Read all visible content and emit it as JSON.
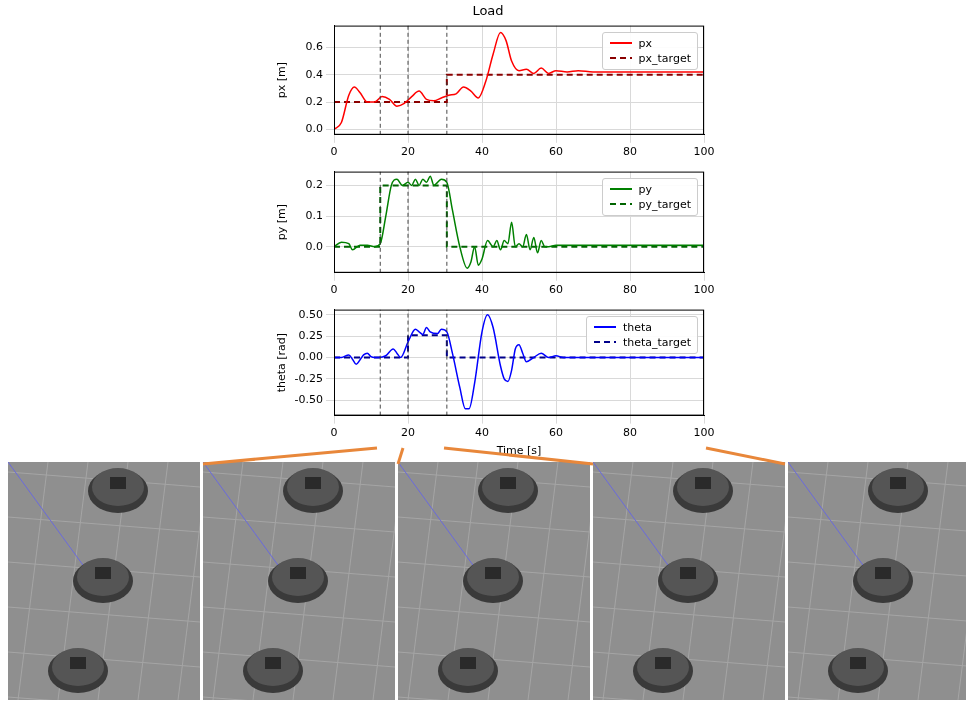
{
  "chart_data": [
    {
      "type": "line",
      "title": "Load",
      "y_label": "px [m]",
      "xlim": [
        0,
        100
      ],
      "xticks": [
        0,
        20,
        40,
        60,
        80,
        100
      ],
      "ylim": [
        -0.04,
        0.76
      ],
      "yticks": [
        {
          "value": 0,
          "label": "0.0"
        },
        0.2,
        0.4,
        0.6
      ],
      "grid": true,
      "legend": "upper right",
      "vlines": [
        12.5,
        20,
        30.5
      ],
      "series": [
        {
          "name": "px",
          "color": "#ff0000",
          "line_style": "solid",
          "x": [
            0,
            2,
            4,
            5.5,
            7,
            9,
            11,
            13,
            15,
            17,
            19,
            21,
            23,
            25,
            27,
            29,
            31,
            33,
            35,
            37,
            39,
            41,
            43,
            45,
            46.5,
            48,
            50,
            52,
            54,
            56,
            58,
            60,
            63,
            66,
            70,
            80,
            90,
            100
          ],
          "values": [
            0,
            0.05,
            0.25,
            0.31,
            0.27,
            0.2,
            0.2,
            0.24,
            0.22,
            0.17,
            0.19,
            0.24,
            0.28,
            0.22,
            0.21,
            0.23,
            0.25,
            0.26,
            0.31,
            0.28,
            0.23,
            0.35,
            0.55,
            0.71,
            0.65,
            0.5,
            0.43,
            0.44,
            0.41,
            0.45,
            0.41,
            0.43,
            0.42,
            0.43,
            0.42,
            0.42,
            0.42,
            0.42
          ]
        },
        {
          "name": "px_target",
          "color": "#8b0000",
          "line_style": "dashed",
          "x": [
            0,
            30.5,
            30.5,
            100
          ],
          "values": [
            0.2,
            0.2,
            0.4,
            0.4
          ]
        }
      ]
    },
    {
      "type": "line",
      "y_label": "py [m]",
      "xlim": [
        0,
        100
      ],
      "xticks": [
        0,
        20,
        40,
        60,
        80,
        100
      ],
      "ylim": [
        -0.085,
        0.245
      ],
      "yticks": [
        {
          "value": 0,
          "label": "0.0"
        },
        0.1,
        0.2
      ],
      "grid": true,
      "legend": "upper right",
      "vlines": [
        12.5,
        20,
        30.5
      ],
      "series": [
        {
          "name": "py",
          "color": "#008000",
          "line_style": "solid",
          "x": [
            0,
            2,
            4,
            5,
            7,
            9,
            11,
            12.5,
            14,
            15.5,
            17,
            18.5,
            20,
            21,
            22,
            23,
            24,
            25,
            26,
            27,
            28,
            29,
            30.5,
            32,
            34,
            36,
            37,
            38,
            39,
            40,
            41.5,
            43,
            44,
            45,
            46,
            47,
            48,
            49,
            50,
            51,
            52,
            53,
            54,
            55,
            56,
            57,
            58,
            60,
            70,
            80,
            100
          ],
          "values": [
            0,
            0.015,
            0.01,
            -0.01,
            0.005,
            0.005,
            0,
            0.01,
            0.1,
            0.2,
            0.22,
            0.2,
            0.21,
            0.2,
            0.22,
            0.2,
            0.22,
            0.21,
            0.23,
            0.2,
            0.21,
            0.22,
            0.21,
            0.12,
            0,
            -0.07,
            -0.05,
            0,
            -0.06,
            -0.04,
            0.02,
            0,
            0.02,
            -0.01,
            0.02,
            0.01,
            0.08,
            0,
            0.01,
            0,
            0.04,
            -0.01,
            0.03,
            -0.02,
            0.02,
            0,
            0,
            0.005,
            0.005,
            0.005,
            0.005
          ]
        },
        {
          "name": "py_target",
          "color": "#006400",
          "line_style": "dashed",
          "x": [
            0,
            12.5,
            12.5,
            30.5,
            30.5,
            100
          ],
          "values": [
            0,
            0,
            0.2,
            0.2,
            0,
            0
          ]
        }
      ]
    },
    {
      "type": "line",
      "y_label": "theta [rad]",
      "x_label": "Time [s]",
      "xlim": [
        0,
        100
      ],
      "xticks": [
        0,
        20,
        40,
        60,
        80,
        100
      ],
      "ylim": [
        -0.68,
        0.56
      ],
      "yticks": [
        {
          "value": -0.5,
          "label": "-0.50"
        },
        -0.25,
        {
          "value": 0,
          "label": "0.00"
        },
        0.25,
        {
          "value": 0.5,
          "label": "0.50"
        }
      ],
      "grid": true,
      "legend": "upper right",
      "vlines": [
        12.5,
        20,
        30.5
      ],
      "series": [
        {
          "name": "theta",
          "color": "#0000ff",
          "line_style": "solid",
          "x": [
            0,
            2,
            4,
            5,
            6,
            7,
            8,
            9,
            10,
            11,
            12,
            14,
            16,
            17,
            18,
            20,
            22,
            23,
            24,
            25,
            26,
            28,
            29,
            30.5,
            32,
            34,
            35.5,
            36.5,
            38,
            40,
            41.5,
            43,
            45,
            46,
            47,
            48,
            49,
            50,
            51,
            52,
            54,
            56,
            58,
            60,
            62,
            70,
            100
          ],
          "values": [
            0,
            0,
            0.03,
            -0.02,
            -0.08,
            -0.03,
            0.03,
            0.05,
            0.01,
            0,
            0,
            0.02,
            0.1,
            0.05,
            0,
            0.18,
            0.33,
            0.3,
            0.27,
            0.35,
            0.3,
            0.28,
            0.33,
            0.3,
            0.05,
            -0.35,
            -0.6,
            -0.6,
            -0.3,
            0.3,
            0.5,
            0.35,
            -0.1,
            -0.25,
            -0.28,
            -0.15,
            0.1,
            0.15,
            0.05,
            -0.05,
            0,
            0.05,
            0,
            0.02,
            0,
            0,
            0
          ]
        },
        {
          "name": "theta_target",
          "color": "#00008b",
          "line_style": "dashed",
          "x": [
            0,
            20,
            20,
            30.5,
            30.5,
            100
          ],
          "values": [
            0,
            0,
            0.26,
            0.26,
            0,
            0
          ]
        }
      ]
    }
  ]
}
